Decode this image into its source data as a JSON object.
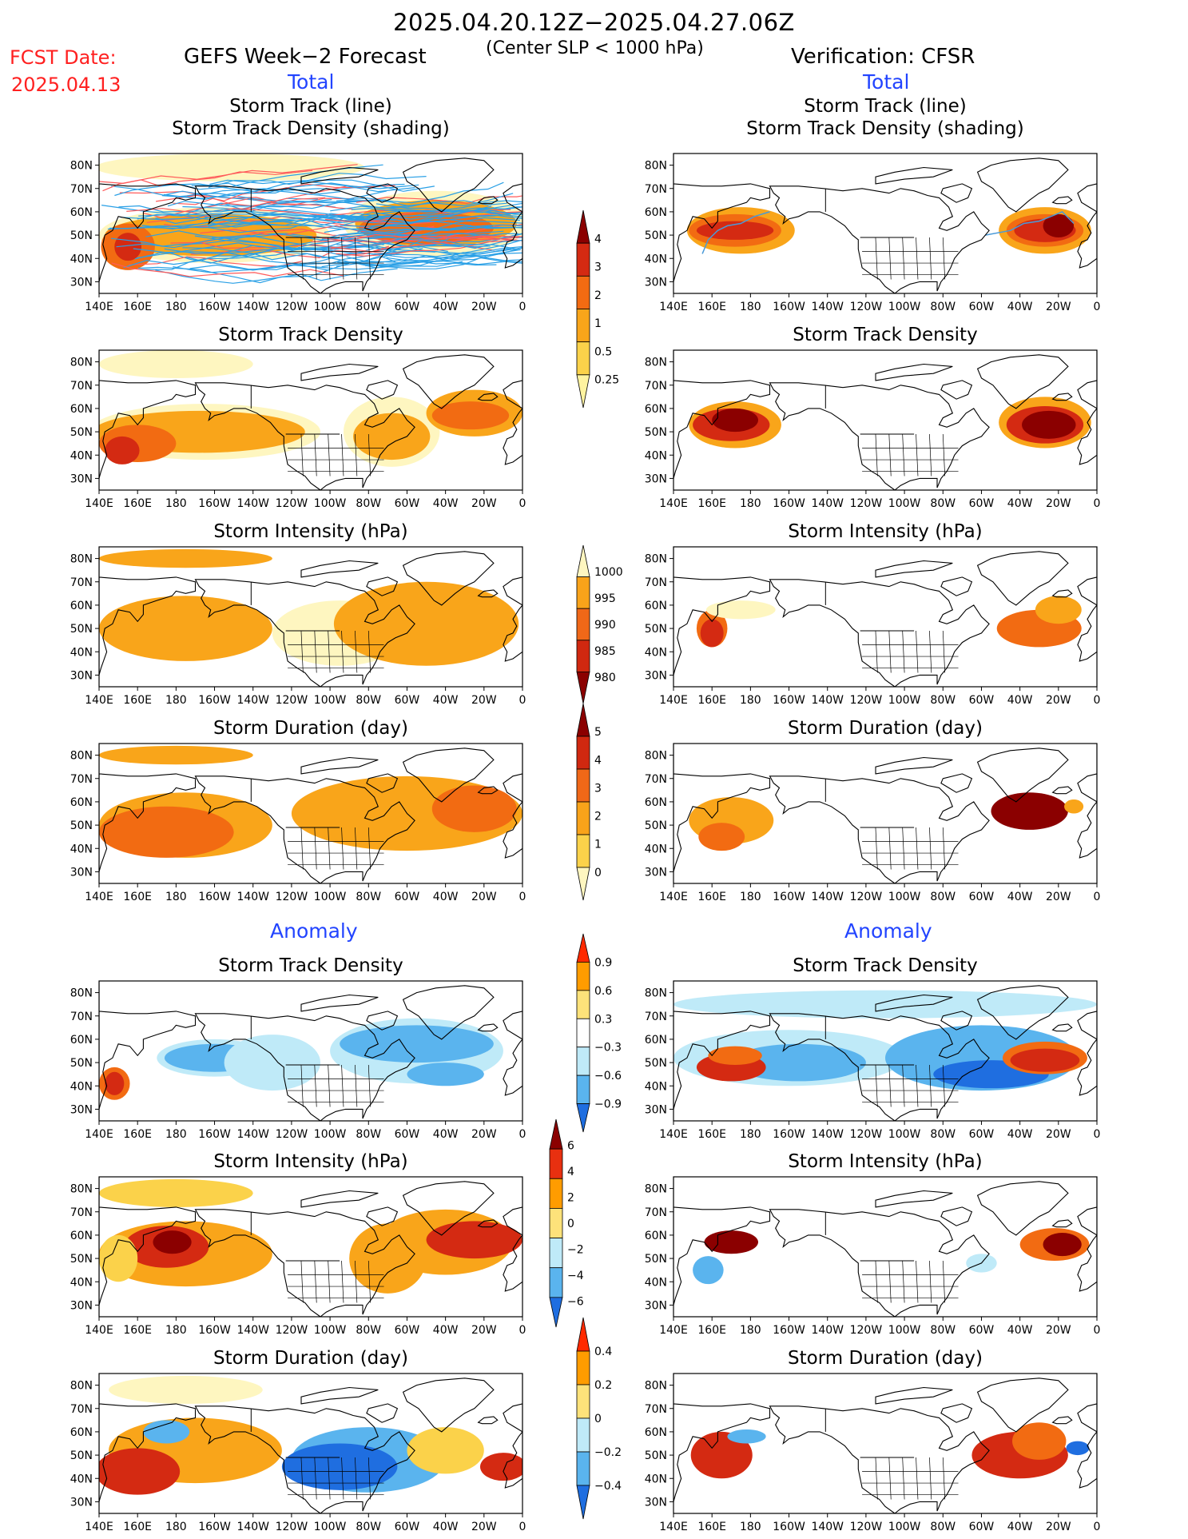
{
  "header": {
    "title": "2025.04.20.12Z−2025.04.27.06Z",
    "fcst_label": "FCST Date:",
    "fcst_date": "2025.04.13",
    "forecast_title": "GEFS Week−2 Forecast",
    "center_note": "(Center SLP < 1000 hPa)",
    "verification_title": "Verification: CFSR",
    "total_left": "Total",
    "total_right": "Total",
    "anomaly_left": "Anomaly",
    "anomaly_right": "Anomaly"
  },
  "axes": {
    "lon_ticks": [
      "140E",
      "160E",
      "180",
      "160W",
      "140W",
      "120W",
      "100W",
      "80W",
      "60W",
      "40W",
      "20W",
      "0"
    ],
    "lat_ticks": [
      "80N",
      "70N",
      "60N",
      "50N",
      "40N",
      "30N"
    ]
  },
  "colorbars": [
    {
      "id": "track-density-total",
      "labels": [
        "4",
        "3",
        "2",
        "1",
        "0.5",
        "0.25"
      ],
      "colors": [
        "#8b0000",
        "#d42a12",
        "#f26b12",
        "#f9a51a",
        "#fbd24a",
        "#fef3a0"
      ]
    },
    {
      "id": "intensity-total",
      "labels": [
        "1000",
        "995",
        "990",
        "985",
        "980"
      ],
      "colors": [
        "#fef6c0",
        "#f9a31a",
        "#f06818",
        "#d02810",
        "#8b0000"
      ]
    },
    {
      "id": "duration-total",
      "labels": [
        "5",
        "4",
        "3",
        "2",
        "1",
        "0"
      ],
      "colors": [
        "#8b0000",
        "#d02810",
        "#f06818",
        "#f9a31a",
        "#fbd24a",
        "#fef6c0"
      ]
    },
    {
      "id": "track-density-anom",
      "labels": [
        "0.9",
        "0.6",
        "0.3",
        "−0.3",
        "−0.6",
        "−0.9"
      ],
      "colors": [
        "#ff2a00",
        "#ff9c00",
        "#fde27a",
        "#ffffff",
        "#bfeaf8",
        "#5ab4ee",
        "#1f6ee0"
      ]
    },
    {
      "id": "intensity-anom",
      "labels": [
        "6",
        "4",
        "2",
        "0",
        "−2",
        "−4",
        "−6"
      ],
      "colors": [
        "#8b0000",
        "#e83010",
        "#ff9c00",
        "#fde27a",
        "#bfeaf8",
        "#5ab4ee",
        "#1f6ee0"
      ]
    },
    {
      "id": "duration-anom",
      "labels": [
        "0.4",
        "0.2",
        "0",
        "−0.2",
        "−0.4"
      ],
      "colors": [
        "#ff2a00",
        "#ff9c00",
        "#fde27a",
        "#bfeaf8",
        "#5ab4ee",
        "#1f6ee0"
      ]
    }
  ],
  "panels": [
    {
      "id": "fcst-track",
      "title1": "Storm Track (line)",
      "title2": "Storm Track Density (shading)"
    },
    {
      "id": "verif-track",
      "title1": "Storm Track (line)",
      "title2": "Storm Track Density (shading)"
    },
    {
      "id": "fcst-density",
      "title1": "Storm Track Density"
    },
    {
      "id": "verif-density",
      "title1": "Storm Track Density"
    },
    {
      "id": "fcst-intensity",
      "title1": "Storm Intensity (hPa)"
    },
    {
      "id": "verif-intensity",
      "title1": "Storm Intensity (hPa)"
    },
    {
      "id": "fcst-duration",
      "title1": "Storm Duration (day)"
    },
    {
      "id": "verif-duration",
      "title1": "Storm Duration (day)"
    },
    {
      "id": "fcst-anom-density",
      "title1": "Storm Track Density"
    },
    {
      "id": "verif-anom-density",
      "title1": "Storm Track Density"
    },
    {
      "id": "fcst-anom-intensity",
      "title1": "Storm Intensity (hPa)"
    },
    {
      "id": "verif-anom-intensity",
      "title1": "Storm Intensity (hPa)"
    },
    {
      "id": "fcst-anom-duration",
      "title1": "Storm Duration (day)"
    },
    {
      "id": "verif-anom-duration",
      "title1": "Storm Duration (day)"
    }
  ],
  "chart_data": {
    "type": "heatmap",
    "title": "2025.04.20.12Z−2025.04.27.06Z",
    "x_range": [
      "140E",
      "0"
    ],
    "y_range": [
      "25N",
      "85N"
    ],
    "note": "Shaded fields of storm track density, intensity and duration over the North Pacific, North America and North Atlantic"
  }
}
